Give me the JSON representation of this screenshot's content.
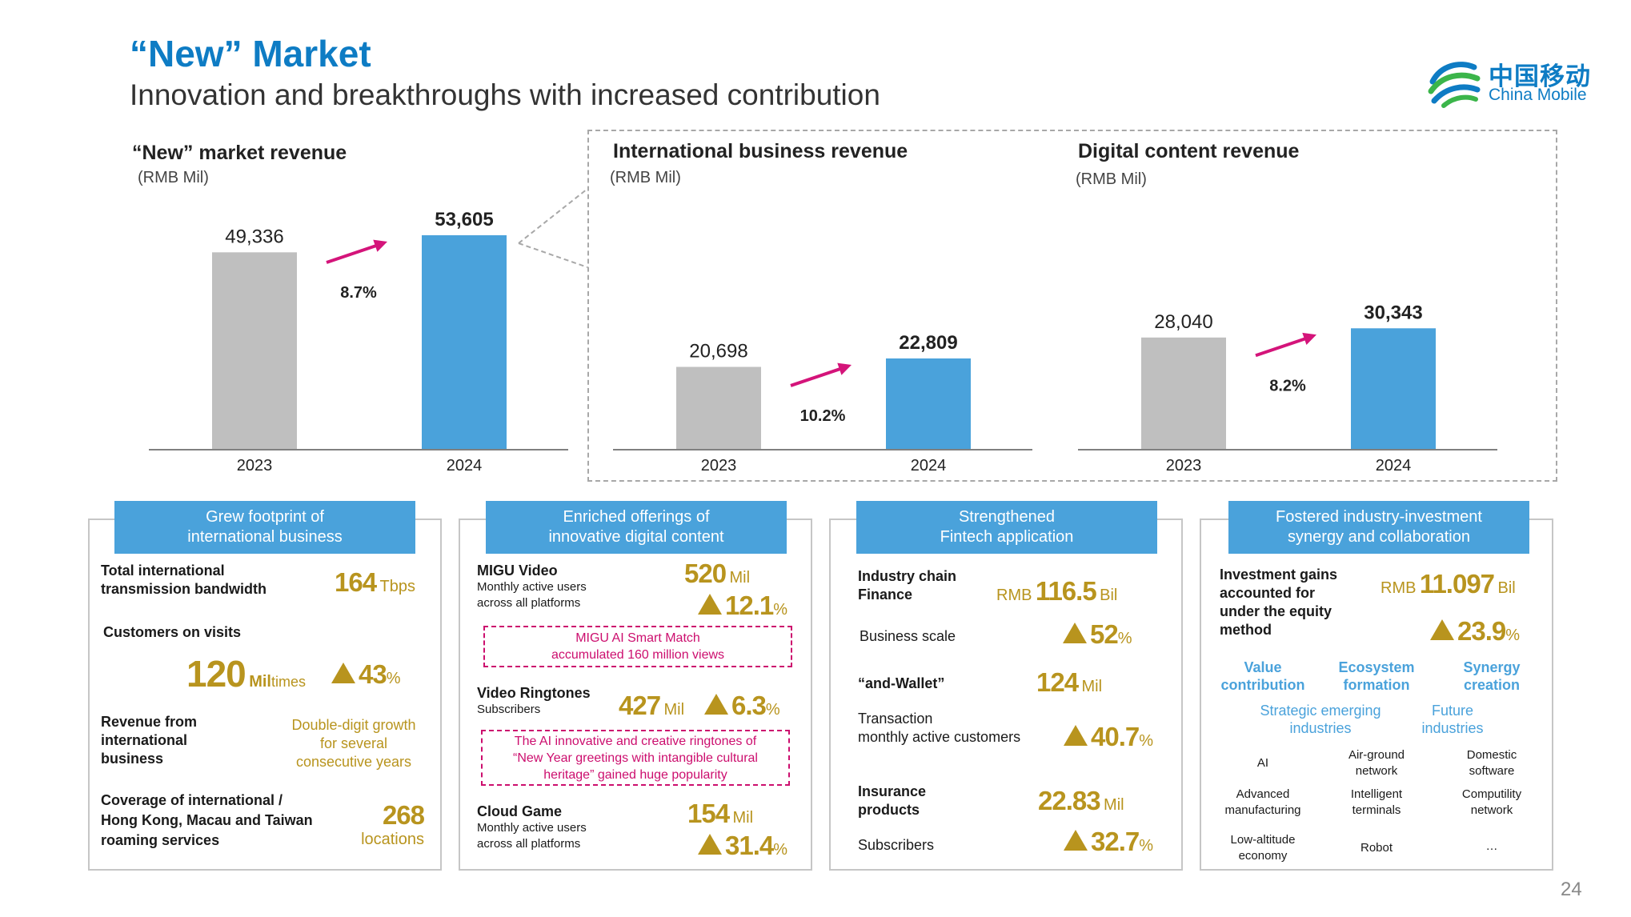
{
  "header": {
    "title": "“New” Market",
    "subtitle": "Innovation and breakthroughs with increased contribution",
    "logo_cn": "中国移动",
    "logo_en": "China Mobile"
  },
  "colors": {
    "accent": "#0e7cc4",
    "bar_2023": "#bfbfbf",
    "bar_2024": "#4aa2db",
    "arrow": "#d4147a",
    "gold": "#b8941e"
  },
  "chart_data": [
    {
      "type": "bar",
      "title": "“New” market revenue",
      "unit": "(RMB Mil)",
      "categories": [
        "2023",
        "2024"
      ],
      "values": [
        49336,
        53605
      ],
      "value_labels": [
        "49,336",
        "53,605"
      ],
      "growth": "8.7%",
      "ylim": [
        0,
        60000
      ]
    },
    {
      "type": "bar",
      "title": "International business revenue",
      "unit": "(RMB Mil)",
      "categories": [
        "2023",
        "2024"
      ],
      "values": [
        20698,
        22809
      ],
      "value_labels": [
        "20,698",
        "22,809"
      ],
      "growth": "10.2%",
      "ylim": [
        0,
        60000
      ]
    },
    {
      "type": "bar",
      "title": "Digital content revenue",
      "unit": "(RMB Mil)",
      "categories": [
        "2023",
        "2024"
      ],
      "values": [
        28040,
        30343
      ],
      "value_labels": [
        "28,040",
        "30,343"
      ],
      "growth": "8.2%",
      "ylim": [
        0,
        60000
      ]
    }
  ],
  "panels": {
    "p1": {
      "head": [
        "Grew footprint of",
        "international business"
      ],
      "bandwidth_label": [
        "Total international",
        "transmission bandwidth"
      ],
      "bandwidth_value": "164",
      "bandwidth_unit": "Tbps",
      "visits_label": "Customers on visits",
      "visits_value": "120",
      "visits_unit_a": "Mil",
      "visits_unit_b": "times",
      "visits_growth": "43",
      "visits_growth_unit": "%",
      "revenue_label": [
        "Revenue from",
        "international",
        "business"
      ],
      "revenue_note": [
        "Double-digit growth",
        "for several",
        "consecutive years"
      ],
      "coverage_label": [
        "Coverage of international /",
        "Hong Kong, Macau and Taiwan",
        "roaming services"
      ],
      "coverage_value": "268",
      "coverage_unit": "locations"
    },
    "p2": {
      "head": [
        "Enriched offerings of",
        "innovative digital content"
      ],
      "migu_title": "MIGU Video",
      "migu_desc": [
        "Monthly active users",
        "across all platforms"
      ],
      "migu_value": "520",
      "migu_unit": "Mil",
      "migu_growth": "12.1",
      "migu_growth_unit": "%",
      "migu_box": [
        "MIGU AI Smart Match",
        "accumulated 160 million views"
      ],
      "ring_title": "Video Ringtones",
      "ring_desc": "Subscribers",
      "ring_value": "427",
      "ring_unit": "Mil",
      "ring_growth": "6.3",
      "ring_growth_unit": "%",
      "ring_box": [
        "The AI innovative and creative ringtones of",
        "“New Year greetings with intangible cultural",
        "heritage” gained huge popularity"
      ],
      "cloud_title": "Cloud Game",
      "cloud_desc": [
        "Monthly active users",
        "across all platforms"
      ],
      "cloud_value": "154",
      "cloud_unit": "Mil",
      "cloud_growth": "31.4",
      "cloud_growth_unit": "%"
    },
    "p3": {
      "head": [
        "Strengthened",
        "Fintech application"
      ],
      "icf_label": [
        "Industry chain",
        "Finance"
      ],
      "icf_prefix": "RMB",
      "icf_value": "116.5",
      "icf_unit": "Bil",
      "scale_label": "Business scale",
      "scale_growth": "52",
      "scale_growth_unit": "%",
      "wallet_label": "“and-Wallet”",
      "wallet_value": "124",
      "wallet_unit": "Mil",
      "txn_label": [
        "Transaction",
        "monthly active customers"
      ],
      "txn_growth": "40.7",
      "txn_growth_unit": "%",
      "ins_label": [
        "Insurance",
        "products"
      ],
      "ins_value": "22.83",
      "ins_unit": "Mil",
      "subs_label": "Subscribers",
      "subs_growth": "32.7",
      "subs_growth_unit": "%"
    },
    "p4": {
      "head": [
        "Fostered industry-investment",
        "synergy and collaboration"
      ],
      "gains_label": [
        "Investment gains",
        "accounted for",
        "under the equity",
        "method"
      ],
      "gains_prefix": "RMB",
      "gains_value": "11.097",
      "gains_unit": "Bil",
      "gains_growth": "23.9",
      "gains_growth_unit": "%",
      "cats": [
        [
          "Value",
          "contribution"
        ],
        [
          "Ecosystem",
          "formation"
        ],
        [
          "Synergy",
          "creation"
        ]
      ],
      "subs": [
        [
          "Strategic emerging",
          "industries"
        ],
        [
          "Future",
          "industries"
        ]
      ],
      "industries": [
        [
          "AI"
        ],
        [
          "Air-ground",
          "network"
        ],
        [
          "Domestic",
          "software"
        ],
        [
          "Advanced",
          "manufacturing"
        ],
        [
          "Intelligent",
          "terminals"
        ],
        [
          "Computility",
          "network"
        ],
        [
          "Low-altitude",
          "economy"
        ],
        [
          "Robot"
        ],
        [
          "…"
        ]
      ]
    }
  },
  "page_number": "24"
}
